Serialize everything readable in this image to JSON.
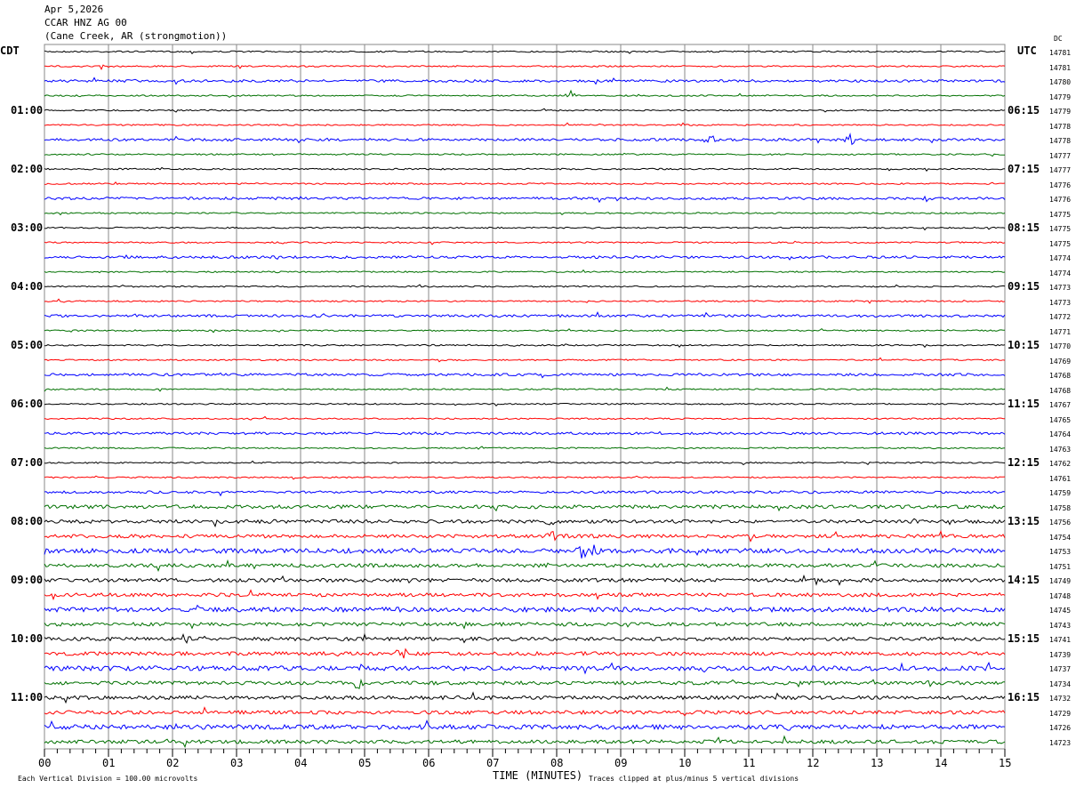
{
  "header": {
    "date": "Apr 5,2026",
    "station": "CCAR HNZ AG 00",
    "location": "(Cane Creek, AR (strongmotion))"
  },
  "left_tz": "CDT",
  "right_tz": "UTC",
  "dc_label": "DC",
  "chart_data": {
    "type": "line",
    "title": "CCAR HNZ AG 00",
    "xlabel": "TIME (MINUTES)",
    "xlim": [
      0,
      15
    ],
    "x_ticks": [
      "00",
      "01",
      "02",
      "03",
      "04",
      "05",
      "06",
      "07",
      "08",
      "09",
      "10",
      "11",
      "12",
      "13",
      "14",
      "15"
    ],
    "left_labels": [
      "",
      "01:00",
      "02:00",
      "03:00",
      "04:00",
      "05:00",
      "06:00",
      "07:00",
      "08:00",
      "09:00",
      "10:00",
      "11:00"
    ],
    "right_labels": [
      "",
      "06:15",
      "07:15",
      "08:15",
      "09:15",
      "10:15",
      "11:15",
      "12:15",
      "13:15",
      "14:15",
      "15:15",
      "16:15"
    ],
    "trace_colors": [
      "#000000",
      "#ff0000",
      "#0000ff",
      "#007000"
    ],
    "dc_values": [
      14781,
      14781,
      14780,
      14779,
      14779,
      14778,
      14778,
      14777,
      14777,
      14776,
      14776,
      14775,
      14775,
      14775,
      14774,
      14774,
      14773,
      14773,
      14772,
      14771,
      14770,
      14769,
      14768,
      14768,
      14767,
      14765,
      14764,
      14763,
      14762,
      14761,
      14759,
      14758,
      14756,
      14754,
      14753,
      14751,
      14749,
      14748,
      14745,
      14743,
      14741,
      14739,
      14737,
      14734,
      14732,
      14729,
      14726,
      14723
    ],
    "events": [
      [
        6,
        10.4,
        9
      ],
      [
        6,
        12.6,
        7
      ],
      [
        32,
        7.9,
        8
      ],
      [
        34,
        8.4,
        10
      ],
      [
        34,
        8.6,
        8
      ],
      [
        43,
        4.9,
        9
      ],
      [
        43,
        13.8,
        7
      ],
      [
        41,
        5.6,
        6
      ],
      [
        39,
        6.6,
        7
      ],
      [
        40,
        2.2,
        7
      ],
      [
        1,
        0.9,
        5
      ],
      [
        10,
        13.8,
        6
      ],
      [
        3,
        8.2,
        6
      ],
      [
        46,
        11.7,
        7
      ],
      [
        33,
        7.9,
        8
      ]
    ],
    "scale_note": "Each Vertical Division =  100.00 microvolts",
    "clip_note": "Traces clipped at plus/minus 5 vertical divisions"
  }
}
